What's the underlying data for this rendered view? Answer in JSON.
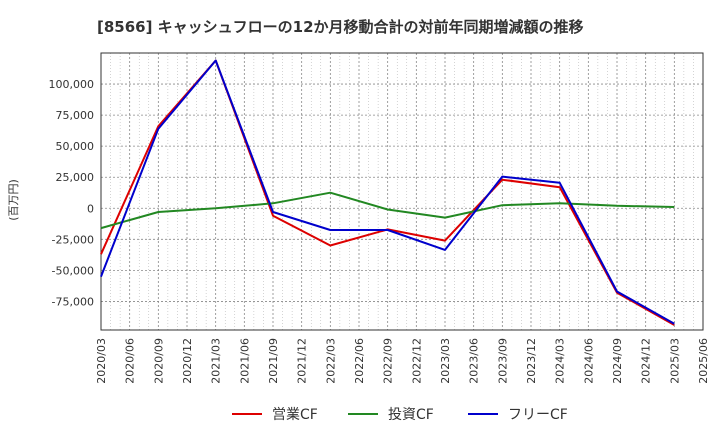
{
  "chart_data": {
    "type": "line",
    "title": "[8566]  キャッシュフローの12か月移動合計の対前年同期増減額の推移",
    "ylabel": "(百万円)",
    "xlabel": "",
    "ylim": [
      -98000,
      125000
    ],
    "yticks": [
      100000,
      75000,
      50000,
      25000,
      0,
      -25000,
      -50000,
      -75000
    ],
    "ytick_labels": [
      "100,000",
      "75,000",
      "50,000",
      "25,000",
      "0",
      "-25,000",
      "-50,000",
      "-75,000"
    ],
    "xticks": [
      "2020/03",
      "2020/06",
      "2020/09",
      "2020/12",
      "2021/03",
      "2021/06",
      "2021/09",
      "2021/12",
      "2022/03",
      "2022/06",
      "2022/09",
      "2022/12",
      "2023/03",
      "2023/06",
      "2023/09",
      "2023/12",
      "2024/03",
      "2024/06",
      "2024/09",
      "2024/12",
      "2025/03",
      "2025/06"
    ],
    "grid": true,
    "legend_position": "bottom",
    "series": [
      {
        "name": "営業CF",
        "color": "#dd0000",
        "x": [
          "2020/03",
          "2020/09",
          "2021/03",
          "2021/09",
          "2022/03",
          "2022/09",
          "2023/03",
          "2023/09",
          "2024/03",
          "2024/09",
          "2025/03"
        ],
        "values": [
          -37000,
          66000,
          119000,
          -6000,
          -30000,
          -17000,
          -26000,
          23000,
          17000,
          -68000,
          -94000
        ]
      },
      {
        "name": "投資CF",
        "color": "#228822",
        "x": [
          "2020/03",
          "2020/09",
          "2021/03",
          "2021/09",
          "2022/03",
          "2022/09",
          "2023/03",
          "2023/09",
          "2024/03",
          "2024/09",
          "2025/03"
        ],
        "values": [
          -16000,
          -3000,
          0,
          4000,
          12500,
          -1000,
          -7500,
          2500,
          4000,
          2000,
          1000
        ]
      },
      {
        "name": "フリーCF",
        "color": "#0000cc",
        "x": [
          "2020/03",
          "2020/09",
          "2021/03",
          "2021/09",
          "2022/03",
          "2022/09",
          "2023/03",
          "2023/09",
          "2024/03",
          "2024/09",
          "2025/03"
        ],
        "values": [
          -55000,
          64000,
          119000,
          -3000,
          -17500,
          -17500,
          -33500,
          25500,
          20500,
          -67000,
          -93000
        ]
      }
    ]
  }
}
